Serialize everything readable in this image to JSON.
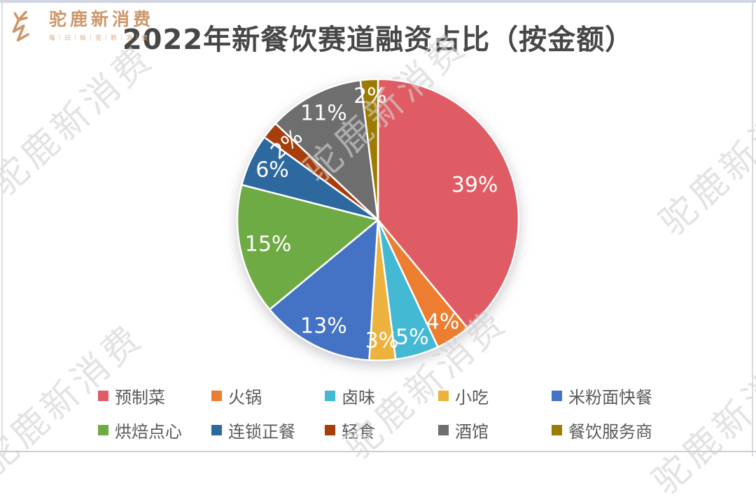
{
  "brand": {
    "name": "驼鹿新消费",
    "tagline": "每｜日｜纵｜览｜新｜消｜费",
    "color": "#CE9669"
  },
  "watermark": {
    "text": "驼鹿新消费"
  },
  "chart_data": {
    "type": "pie",
    "title": "2022年新餐饮赛道融资占比（按金额）",
    "unit": "percent",
    "total": 100,
    "direction": "clockwise",
    "start_angle_deg": 0,
    "legend_position": "bottom",
    "series": [
      {
        "name": "预制菜",
        "value": 39,
        "display": "39%",
        "color": "#E05C64"
      },
      {
        "name": "火锅",
        "value": 4,
        "display": "4%",
        "color": "#ED7D31"
      },
      {
        "name": "卤味",
        "value": 5,
        "display": "5%",
        "color": "#44B9D4"
      },
      {
        "name": "小吃",
        "value": 3,
        "display": "3%",
        "color": "#ECB23D"
      },
      {
        "name": "米粉面快餐",
        "value": 13,
        "display": "13%",
        "color": "#4472C4"
      },
      {
        "name": "烘焙点心",
        "value": 15,
        "display": "15%",
        "color": "#6EAB44"
      },
      {
        "name": "连锁正餐",
        "value": 6,
        "display": "6%",
        "color": "#2D689E"
      },
      {
        "name": "轻食",
        "value": 2,
        "display": "2%",
        "color": "#A63E0C"
      },
      {
        "name": "酒馆",
        "value": 11,
        "display": "11%",
        "color": "#6E6E6E"
      },
      {
        "name": "餐饮服务商",
        "value": 2,
        "display": "2%",
        "color": "#9C7B00"
      }
    ],
    "label_layout": [
      {
        "r": 0.73
      },
      {
        "r": 0.86
      },
      {
        "r": 0.87
      },
      {
        "r": 0.86
      },
      {
        "r": 0.85
      },
      {
        "r": 0.8
      },
      {
        "r": 0.83
      },
      {
        "r": 0.84,
        "rotate": -40
      },
      {
        "r": 0.85
      },
      {
        "r": 0.88
      }
    ]
  }
}
